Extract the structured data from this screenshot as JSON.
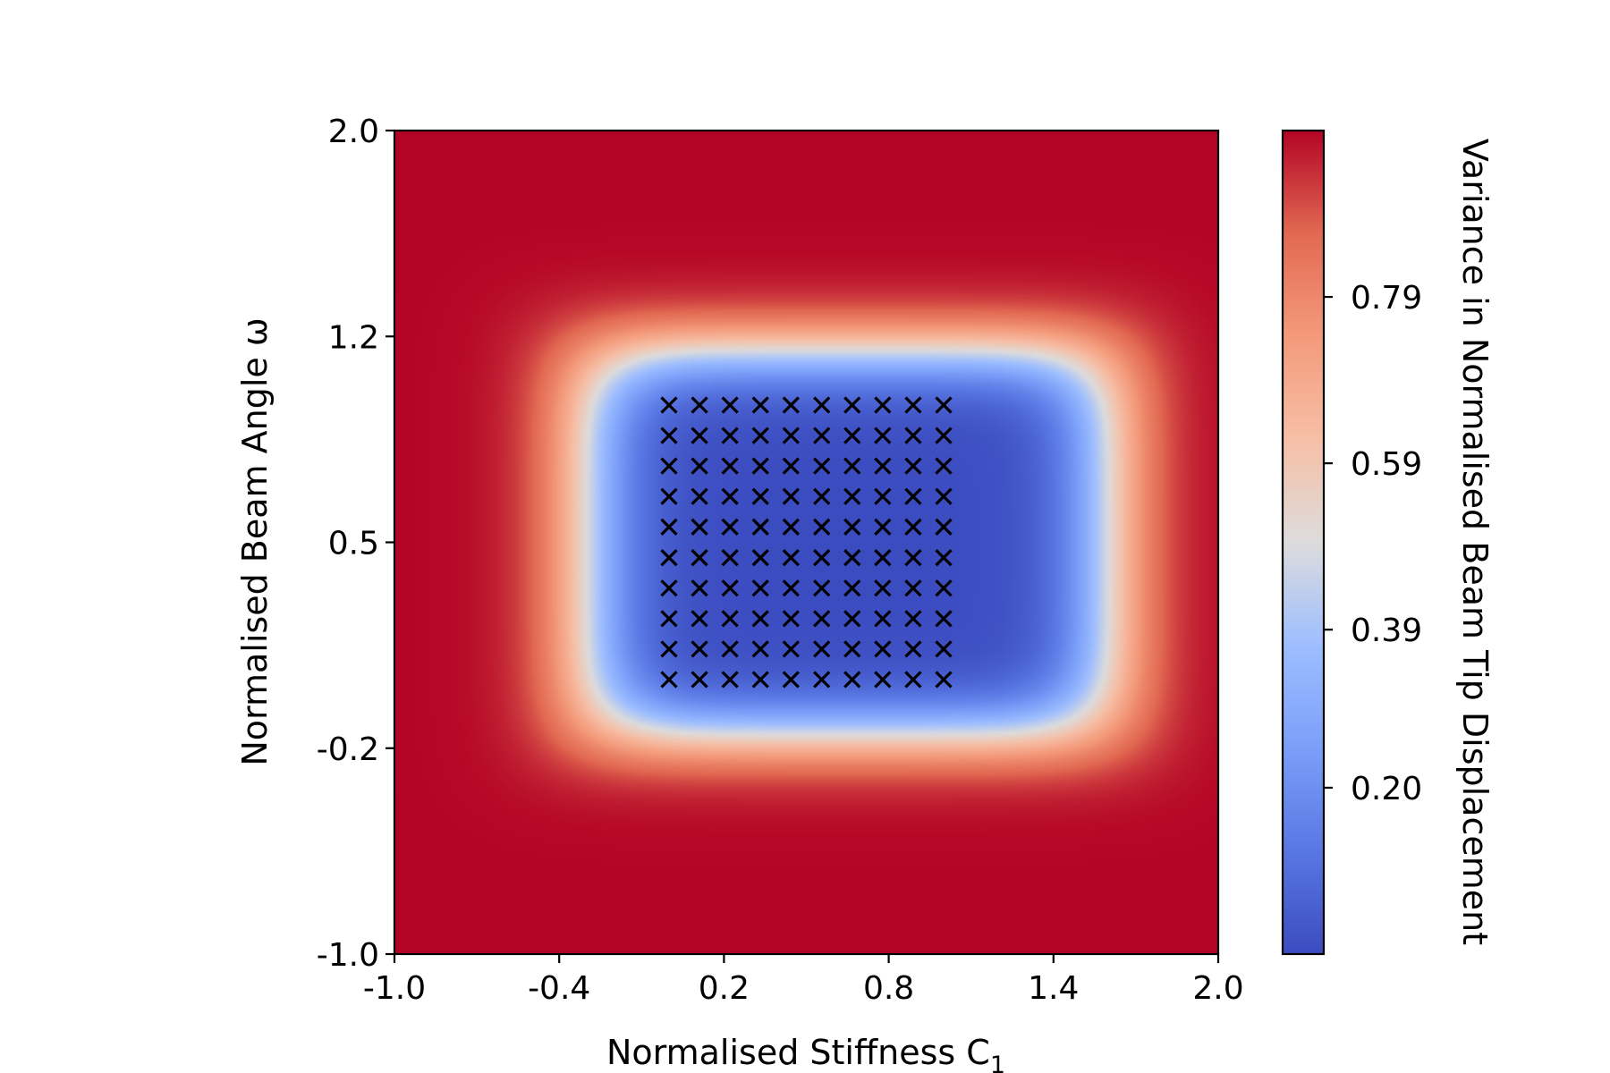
{
  "chart_data": {
    "type": "heatmap",
    "title": "",
    "xlabel": "Normalised Stiffness C",
    "xlabel_subscript": "1",
    "ylabel": "Normalised Beam Angle ω",
    "colorbar_label": "Variance in Normalised Beam Tip Displacement",
    "colormap": "coolwarm",
    "xlim": [
      -1.0,
      2.0
    ],
    "ylim": [
      -1.0,
      2.0
    ],
    "x_ticks": [
      -1.0,
      -0.4,
      0.2,
      0.8,
      1.4,
      2.0
    ],
    "x_tick_labels": [
      "-1.0",
      "-0.4",
      "0.2",
      "0.8",
      "1.4",
      "2.0"
    ],
    "y_ticks": [
      -1.0,
      -0.25,
      0.5,
      1.25,
      2.0
    ],
    "y_tick_labels": [
      "-1.0",
      "-0.2",
      "0.5",
      "1.2",
      "2.0"
    ],
    "colorbar_range": [
      0.0,
      0.99
    ],
    "colorbar_ticks": [
      0.2,
      0.39,
      0.59,
      0.79
    ],
    "colorbar_tick_labels": [
      "0.20",
      "0.39",
      "0.59",
      "0.79"
    ],
    "field_model": {
      "low_region_x": [
        -0.3,
        1.6
      ],
      "low_region_y": [
        -0.2,
        1.2
      ],
      "min_value": 0.0,
      "max_value": 0.99
    },
    "scatter_points": {
      "marker": "x",
      "color": "#000000",
      "x_values": [
        0.0,
        0.111,
        0.222,
        0.333,
        0.444,
        0.556,
        0.667,
        0.778,
        0.889,
        1.0
      ],
      "y_values": [
        0.0,
        0.111,
        0.222,
        0.333,
        0.444,
        0.556,
        0.667,
        0.778,
        0.889,
        1.0
      ]
    }
  }
}
